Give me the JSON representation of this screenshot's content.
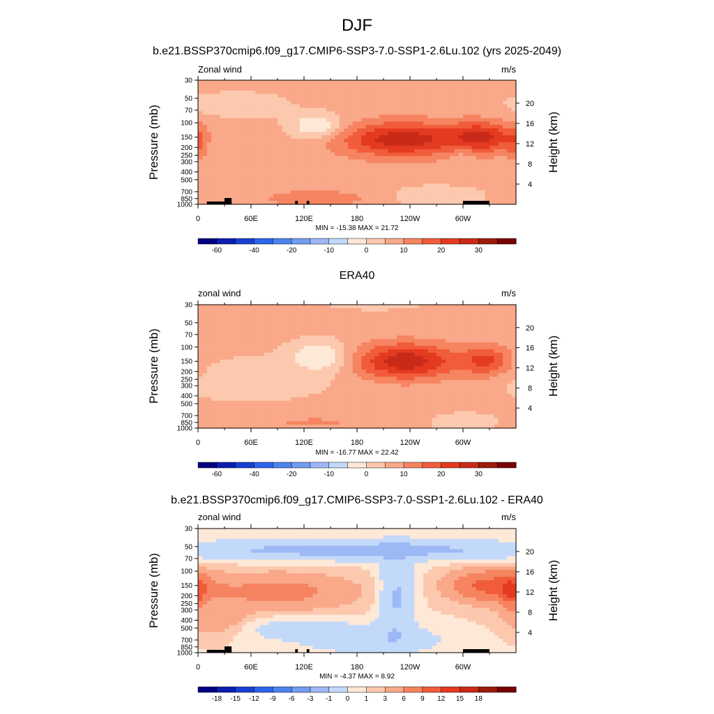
{
  "figure": {
    "title": "DJF"
  },
  "colors": {
    "fill_levels": [
      "#000080",
      "#0a1eaf",
      "#1740d2",
      "#2e64ea",
      "#4a84f0",
      "#739cf0",
      "#9cb9f5",
      "#c3d9fa",
      "#fee8d7",
      "#fcc9ae",
      "#f9a889",
      "#f68460",
      "#f15c3a",
      "#e33a20",
      "#c92a18",
      "#9c1a0c",
      "#780000"
    ],
    "background": "#ffffff"
  },
  "chart_data": [
    {
      "type": "heatmap",
      "panel_title": "b.e21.BSSP370cmip6.f09_g17.CMIP6-SSP3-7.0-SSP1-2.6Lu.102 (yrs 2025-2049)",
      "left_label": "Zonal wind",
      "units": "m/s",
      "ylabel": "Pressure (mb)",
      "ylabel_right": "Height (km)",
      "yticks": [
        "30",
        "50",
        "70",
        "100",
        "150",
        "200",
        "250",
        "300",
        "400",
        "500",
        "700",
        "850",
        "1000"
      ],
      "yticks_right": [
        "20",
        "16",
        "12",
        "8",
        "4"
      ],
      "xticks": [
        "0",
        "60E",
        "120E",
        "180",
        "120W",
        "60W"
      ],
      "stats": "MIN = -15.38  MAX =  21.72",
      "colorbar_labels": [
        "-60",
        "-40",
        "-20",
        "-10",
        "0",
        "10",
        "20",
        "30"
      ],
      "features": [
        {
          "lon": 230,
          "p": 160,
          "amp": 21.5,
          "wlon": 48,
          "wlp": 0.34
        },
        {
          "lon": 322,
          "p": 150,
          "amp": 18,
          "wlon": 26,
          "wlp": 0.3
        },
        {
          "lon": 134,
          "p": 110,
          "amp": -12,
          "wlon": 22,
          "wlp": 0.26
        },
        {
          "lon": 45,
          "p": 60,
          "amp": -6,
          "wlon": 40,
          "wlp": 0.25
        },
        {
          "lon": 20,
          "p": 200,
          "amp": -3,
          "wlon": 8,
          "wlp": 0.25
        },
        {
          "lon": 300,
          "p": 250,
          "amp": -4,
          "wlon": 10,
          "wlp": 0.3
        },
        {
          "lon": 135,
          "p": 850,
          "amp": 6,
          "wlon": 45,
          "wlp": 0.18
        },
        {
          "lon": 270,
          "p": 800,
          "amp": -6,
          "wlon": 38,
          "wlp": 0.22
        },
        {
          "lon": 0,
          "p": 180,
          "amp": 7,
          "wlon": 8,
          "wlp": 0.3
        }
      ],
      "base": 2.0
    },
    {
      "type": "heatmap",
      "panel_title": "ERA40",
      "left_label": "zonal wind",
      "units": "m/s",
      "ylabel": "Pressure (mb)",
      "ylabel_right": "Height (km)",
      "yticks": [
        "30",
        "50",
        "70",
        "100",
        "150",
        "200",
        "250",
        "300",
        "400",
        "500",
        "700",
        "850",
        "1000"
      ],
      "yticks_right": [
        "20",
        "16",
        "12",
        "8",
        "4"
      ],
      "xticks": [
        "0",
        "60E",
        "120E",
        "180",
        "120W",
        "60W"
      ],
      "stats": "MIN = -16.77  MAX =  22.42",
      "colorbar_labels": [
        "-60",
        "-40",
        "-20",
        "-10",
        "0",
        "10",
        "20",
        "30"
      ],
      "features": [
        {
          "lon": 235,
          "p": 150,
          "amp": 22,
          "wlon": 42,
          "wlp": 0.36
        },
        {
          "lon": 327,
          "p": 150,
          "amp": 14,
          "wlon": 20,
          "wlp": 0.32
        },
        {
          "lon": 140,
          "p": 130,
          "amp": -12,
          "wlon": 24,
          "wlp": 0.3
        },
        {
          "lon": 60,
          "p": 250,
          "amp": -4,
          "wlon": 70,
          "wlp": 0.45
        },
        {
          "lon": 130,
          "p": 850,
          "amp": 4,
          "wlon": 60,
          "wlp": 0.18
        },
        {
          "lon": 300,
          "p": 850,
          "amp": -4,
          "wlon": 30,
          "wlp": 0.2
        },
        {
          "lon": 200,
          "p": 30,
          "amp": -2,
          "wlon": 70,
          "wlp": 0.2
        }
      ],
      "base": 1.5
    },
    {
      "type": "heatmap",
      "panel_title": "b.e21.BSSP370cmip6.f09_g17.CMIP6-SSP3-7.0-SSP1-2.6Lu.102 - ERA40",
      "left_label": "zonal wind",
      "units": "m/s",
      "ylabel": "Pressure (mb)",
      "ylabel_right": "Height (km)",
      "yticks": [
        "30",
        "50",
        "70",
        "100",
        "150",
        "200",
        "250",
        "300",
        "400",
        "500",
        "700",
        "850",
        "1000"
      ],
      "yticks_right": [
        "20",
        "16",
        "12",
        "8",
        "4"
      ],
      "xticks": [
        "0",
        "60E",
        "120E",
        "180",
        "120W",
        "60W"
      ],
      "stats": "MIN =  -4.37  MAX =   8.92",
      "colorbar_labels": [
        "-18",
        "-15",
        "-12",
        "-9",
        "-6",
        "-3",
        "-1",
        "0",
        "1",
        "3",
        "6",
        "9",
        "12",
        "15",
        "18"
      ],
      "features": [
        {
          "lon": 180,
          "p": 55,
          "amp": -4,
          "wlon": 160,
          "wlp": 0.2
        },
        {
          "lon": 225,
          "p": 200,
          "amp": -3.5,
          "wlon": 14,
          "wlp": 0.8
        },
        {
          "lon": 90,
          "p": 180,
          "amp": 4,
          "wlon": 60,
          "wlp": 0.35
        },
        {
          "lon": 330,
          "p": 150,
          "amp": 7,
          "wlon": 30,
          "wlp": 0.3
        },
        {
          "lon": 355,
          "p": 180,
          "amp": 6,
          "wlon": 8,
          "wlp": 0.3
        },
        {
          "lon": 100,
          "p": 500,
          "amp": -1.5,
          "wlon": 50,
          "wlp": 0.25
        },
        {
          "lon": 200,
          "p": 700,
          "amp": -2.2,
          "wlon": 60,
          "wlp": 0.3
        },
        {
          "lon": 20,
          "p": 400,
          "amp": 2.5,
          "wlon": 25,
          "wlp": 0.3
        }
      ],
      "base": 0.0
    }
  ]
}
